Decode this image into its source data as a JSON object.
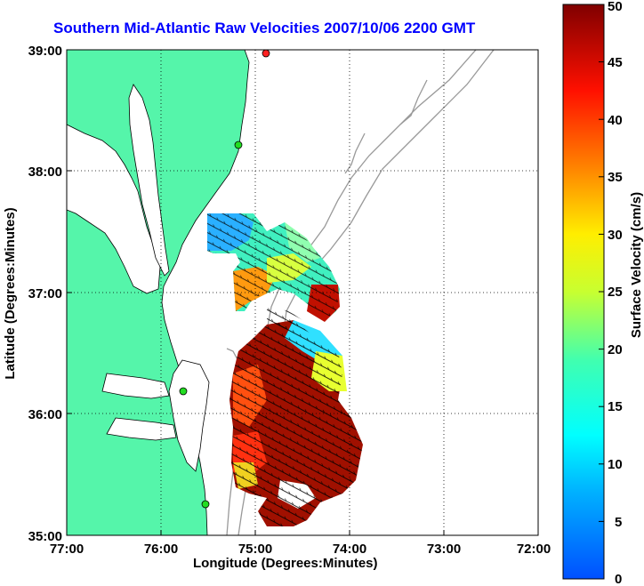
{
  "title": "Southern Mid-Atlantic Raw Velocities 2007/10/06 2200 GMT",
  "x_axis": {
    "label": "Longitude (Degrees:Minutes)",
    "ticks": [
      "77:00",
      "76:00",
      "75:00",
      "74:00",
      "73:00",
      "72:00"
    ]
  },
  "y_axis": {
    "label": "Latitude (Degrees:Minutes)",
    "ticks": [
      "39:00",
      "38:00",
      "37:00",
      "36:00",
      "35:00"
    ]
  },
  "colorbar": {
    "label": "Surface Velocity (cm/s)",
    "ticks": [
      "50",
      "45",
      "40",
      "35",
      "30",
      "25",
      "20",
      "15",
      "10",
      "5",
      "0"
    ],
    "min": 0,
    "max": 50
  },
  "colors": {
    "land": "#55f5aa",
    "title": "#0000ff",
    "station": "#22dd22",
    "station_active": "#ff2222"
  },
  "stations": [
    {
      "name": "station-1",
      "active": true
    },
    {
      "name": "station-2",
      "active": false
    },
    {
      "name": "station-3",
      "active": false
    },
    {
      "name": "station-4",
      "active": false
    }
  ]
}
